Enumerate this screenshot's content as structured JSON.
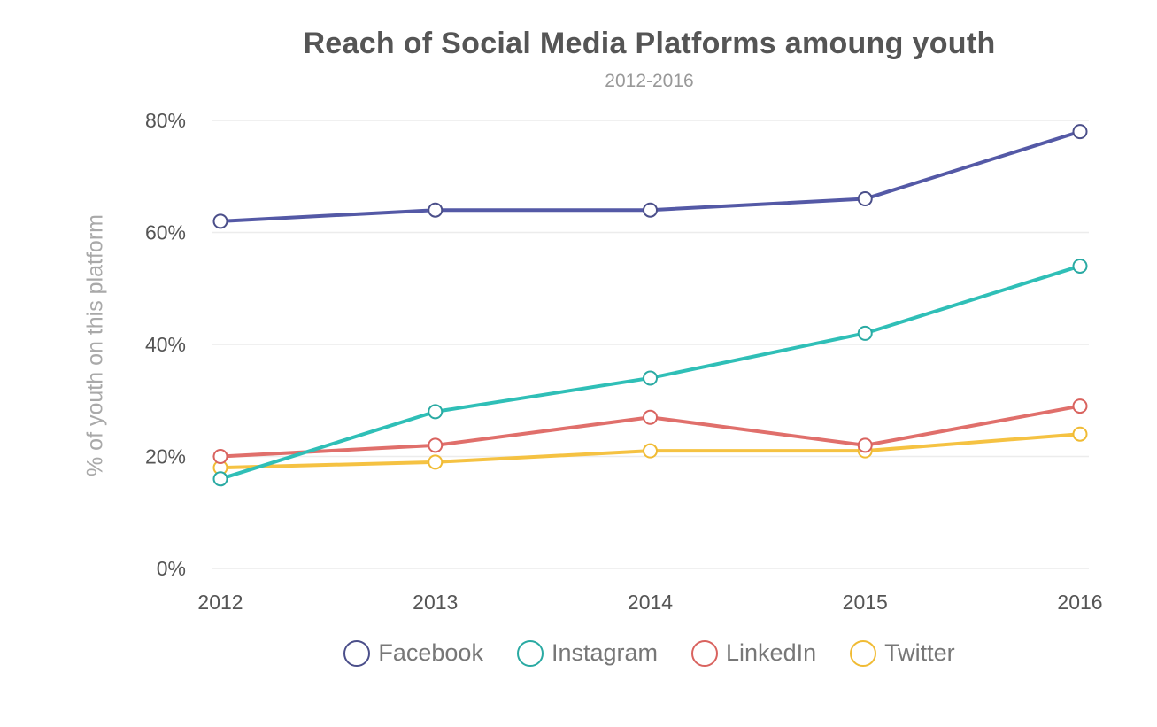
{
  "chart_data": {
    "type": "line",
    "title": "Reach of Social Media Platforms amoung youth",
    "subtitle": "2012-2016",
    "xlabel": "",
    "ylabel": "% of youth on this platform",
    "x": [
      "2012",
      "2013",
      "2014",
      "2015",
      "2016"
    ],
    "ylim": [
      0,
      80
    ],
    "yticks": [
      0,
      20,
      40,
      60,
      80
    ],
    "ytick_labels": [
      "0%",
      "20%",
      "40%",
      "60%",
      "80%"
    ],
    "grid": true,
    "legend_position": "bottom",
    "series": [
      {
        "name": "Facebook",
        "color": "#5459a6",
        "marker_color": "#4b4f8a",
        "values": [
          62,
          64,
          64,
          66,
          78
        ]
      },
      {
        "name": "Instagram",
        "color": "#2fbfb7",
        "marker_color": "#2aaaa3",
        "values": [
          16,
          28,
          34,
          42,
          54
        ]
      },
      {
        "name": "LinkedIn",
        "color": "#e06f6b",
        "marker_color": "#d9635f",
        "values": [
          20,
          22,
          27,
          22,
          29
        ]
      },
      {
        "name": "Twitter",
        "color": "#f5c242",
        "marker_color": "#f0bb34",
        "values": [
          18,
          19,
          21,
          21,
          24
        ]
      }
    ]
  }
}
